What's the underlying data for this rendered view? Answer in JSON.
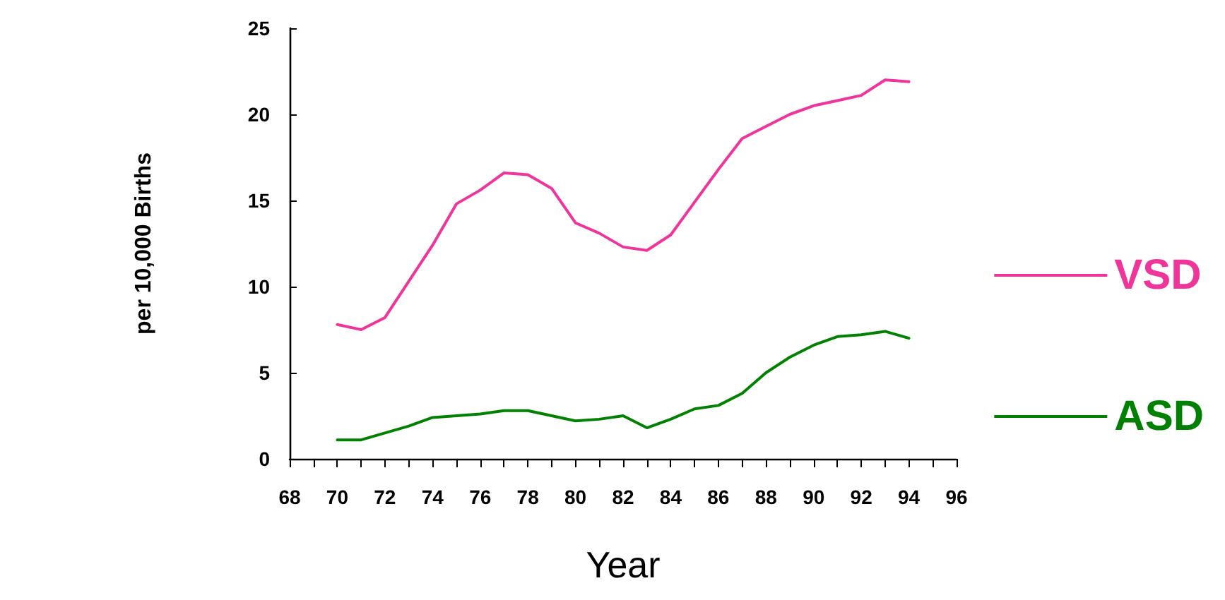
{
  "chart_data": {
    "type": "line",
    "xlabel": "Year",
    "ylabel": "per 10,000 Births",
    "x": [
      70,
      71,
      72,
      73,
      74,
      75,
      76,
      77,
      78,
      79,
      80,
      81,
      82,
      83,
      84,
      85,
      86,
      87,
      88,
      89,
      90,
      91,
      92,
      93,
      94
    ],
    "series": [
      {
        "name": "VSD",
        "color": "#f0359a",
        "values": [
          7.8,
          7.5,
          8.2,
          10.3,
          12.4,
          14.8,
          15.6,
          16.6,
          16.5,
          15.7,
          13.7,
          13.1,
          12.3,
          12.1,
          13.0,
          14.9,
          16.8,
          18.6,
          19.3,
          20.0,
          20.5,
          20.8,
          21.1,
          22.0,
          21.9
        ]
      },
      {
        "name": "ASD",
        "color": "#008000",
        "values": [
          1.1,
          1.1,
          1.5,
          1.9,
          2.4,
          2.5,
          2.6,
          2.8,
          2.8,
          2.5,
          2.2,
          2.3,
          2.5,
          1.8,
          2.3,
          2.9,
          3.1,
          3.8,
          5.0,
          5.9,
          6.6,
          7.1,
          7.2,
          7.4,
          7.0
        ]
      }
    ],
    "xlim": [
      68,
      96
    ],
    "xticks": [
      68,
      {
        "value": 69,
        "label": null
      },
      70,
      {
        "value": 71,
        "label": null
      },
      72,
      {
        "value": 73,
        "label": null
      },
      74,
      {
        "value": 75,
        "label": null
      },
      76,
      {
        "value": 77,
        "label": null
      },
      78,
      {
        "value": 79,
        "label": null
      },
      80,
      {
        "value": 81,
        "label": null
      },
      82,
      {
        "value": 83,
        "label": null
      },
      84,
      {
        "value": 85,
        "label": null
      },
      86,
      {
        "value": 87,
        "label": null
      },
      88,
      {
        "value": 89,
        "label": null
      },
      90,
      {
        "value": 91,
        "label": null
      },
      92,
      {
        "value": 93,
        "label": null
      },
      94,
      {
        "value": 95,
        "label": null
      },
      96
    ],
    "ylim": [
      0,
      25
    ],
    "yticks": [
      0,
      5,
      10,
      15,
      20,
      25
    ],
    "grid": false,
    "legend": "right",
    "marker": "none",
    "line_style": "solid"
  }
}
